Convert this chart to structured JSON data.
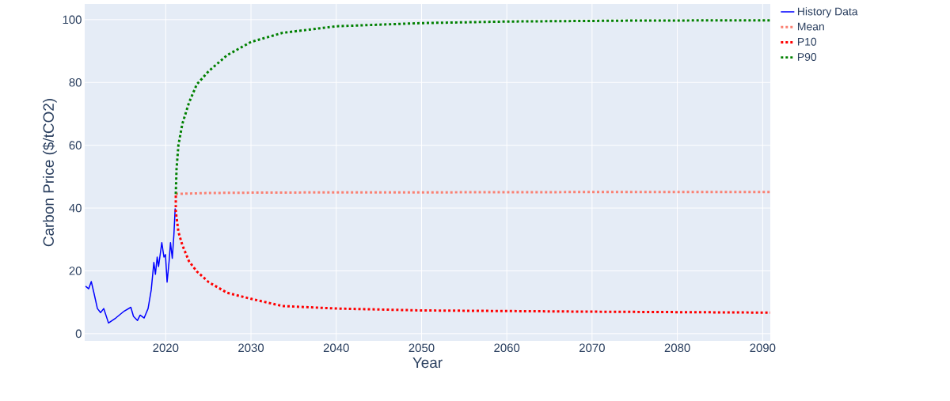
{
  "chart_data": {
    "type": "line",
    "xlabel": "Year",
    "ylabel": "Carbon Price ($/tCO2)",
    "xlim": [
      2010.5,
      2090.9
    ],
    "ylim": [
      -2.3,
      105
    ],
    "xticks": [
      2020,
      2030,
      2040,
      2050,
      2060,
      2070,
      2080,
      2090
    ],
    "yticks": [
      0,
      20,
      40,
      60,
      80,
      100
    ],
    "grid": true,
    "legend": "right",
    "series": [
      {
        "name": "History Data",
        "color": "#0000ff",
        "line_style": "solid",
        "x": [
          2010.6,
          2010.97,
          2011.27,
          2011.58,
          2011.99,
          2012.36,
          2012.73,
          2013.29,
          2014.15,
          2015.14,
          2015.91,
          2016.22,
          2016.69,
          2017.0,
          2017.47,
          2017.93,
          2018.3,
          2018.61,
          2018.79,
          2019.0,
          2019.16,
          2019.54,
          2019.79,
          2019.97,
          2020.16,
          2020.4,
          2020.56,
          2020.77,
          2020.96,
          2021.11
        ],
        "values": [
          15.1,
          14.3,
          16.6,
          13,
          8,
          6.7,
          8,
          3.4,
          5,
          7.2,
          8.4,
          5.5,
          4.2,
          5.9,
          5,
          8,
          13.9,
          22.7,
          18.9,
          24.4,
          21.4,
          29,
          24.4,
          25.2,
          16.4,
          23.1,
          29,
          24,
          31.5,
          39.9
        ]
      },
      {
        "name": "Mean",
        "color": "#fa8072",
        "line_style": "dotted",
        "x": [
          2021.18,
          2025,
          2030,
          2040,
          2050,
          2070,
          2090.9
        ],
        "values": [
          44.5,
          44.8,
          44.9,
          45,
          45,
          45.1,
          45.1
        ]
      },
      {
        "name": "P10",
        "color": "#ff0000",
        "line_style": "dotted",
        "x": [
          2021.18,
          2021.18,
          2021.49,
          2021.95,
          2022.72,
          2023.65,
          2025.04,
          2027.21,
          2030,
          2033.7,
          2040.06,
          2049.96,
          2070,
          2090.9
        ],
        "values": [
          44,
          39,
          32.4,
          28.2,
          23.1,
          19.8,
          16.4,
          13,
          11.1,
          8.8,
          8.0,
          7.4,
          7.0,
          6.7
        ]
      },
      {
        "name": "P90",
        "color": "#008000",
        "line_style": "dotted",
        "x": [
          2021.18,
          2021.27,
          2021.49,
          2021.95,
          2022.72,
          2023.65,
          2025.04,
          2027.21,
          2030,
          2033.7,
          2040.06,
          2049.96,
          2060,
          2075,
          2090.9
        ],
        "values": [
          44.5,
          52.5,
          60.1,
          66.8,
          73.5,
          79.4,
          83.6,
          88.7,
          92.9,
          95.8,
          97.9,
          98.9,
          99.4,
          99.7,
          99.8
        ]
      }
    ]
  }
}
